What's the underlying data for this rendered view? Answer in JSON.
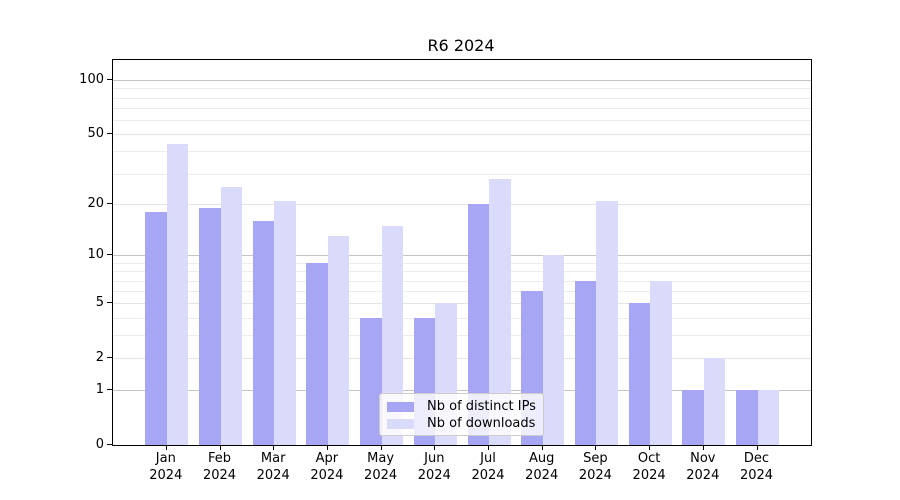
{
  "title": "R6 2024",
  "chart_data": {
    "type": "bar",
    "title": "R6 2024",
    "categories": [
      "Jan 2024",
      "Feb 2024",
      "Mar 2024",
      "Apr 2024",
      "May 2024",
      "Jun 2024",
      "Jul 2024",
      "Aug 2024",
      "Sep 2024",
      "Oct 2024",
      "Nov 2024",
      "Dec 2024"
    ],
    "series": [
      {
        "name": "Nb of distinct IPs",
        "color": "#a6a6f4",
        "values": [
          18,
          19,
          16,
          9,
          4,
          4,
          20,
          6,
          7,
          5,
          1,
          1
        ]
      },
      {
        "name": "Nb of downloads",
        "color": "#dadafa",
        "values": [
          44,
          25,
          21,
          13,
          15,
          5,
          28,
          10,
          21,
          7,
          2,
          1
        ]
      }
    ],
    "yscale": "log10(value+1)",
    "y_ticks": [
      0,
      1,
      2,
      5,
      10,
      20,
      50,
      100
    ],
    "y_minor_ticks": [
      3,
      4,
      6,
      7,
      8,
      9,
      30,
      40,
      60,
      70,
      80,
      90
    ],
    "ylim": [
      0,
      130
    ],
    "xlabel": "",
    "ylabel": "",
    "grid": "horizontal",
    "legend_position": "lower-center-inside"
  },
  "colors": {
    "bar_dark": "#a6a6f4",
    "bar_light": "#dadafa",
    "grid_major": "#c4c4c4",
    "grid_minor": "#ececec",
    "axis": "#000000",
    "background": "#ffffff"
  }
}
